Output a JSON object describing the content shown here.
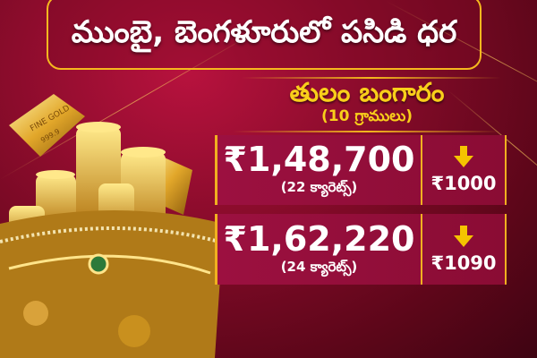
{
  "title": "ముంబై, బెంగళూరులో పసిడి ధర",
  "heading": "తులం బంగారం",
  "subheading": "(10 గ్రాములు)",
  "rows": [
    {
      "price": "₹1,48,700",
      "carat": "(22 క్యారెట్స్)",
      "change": "₹1000",
      "direction": "down"
    },
    {
      "price": "₹1,62,220",
      "carat": "(24 క్యారెట్స్)",
      "change": "₹1090",
      "direction": "down"
    }
  ],
  "image": {
    "bar_text": "FINE GOLD",
    "bar_purity": "999.9"
  },
  "colors": {
    "accent": "#f5b81e",
    "background": "#8c0c2c",
    "heading": "#f8cf1a",
    "arrow": "#f5c400"
  }
}
